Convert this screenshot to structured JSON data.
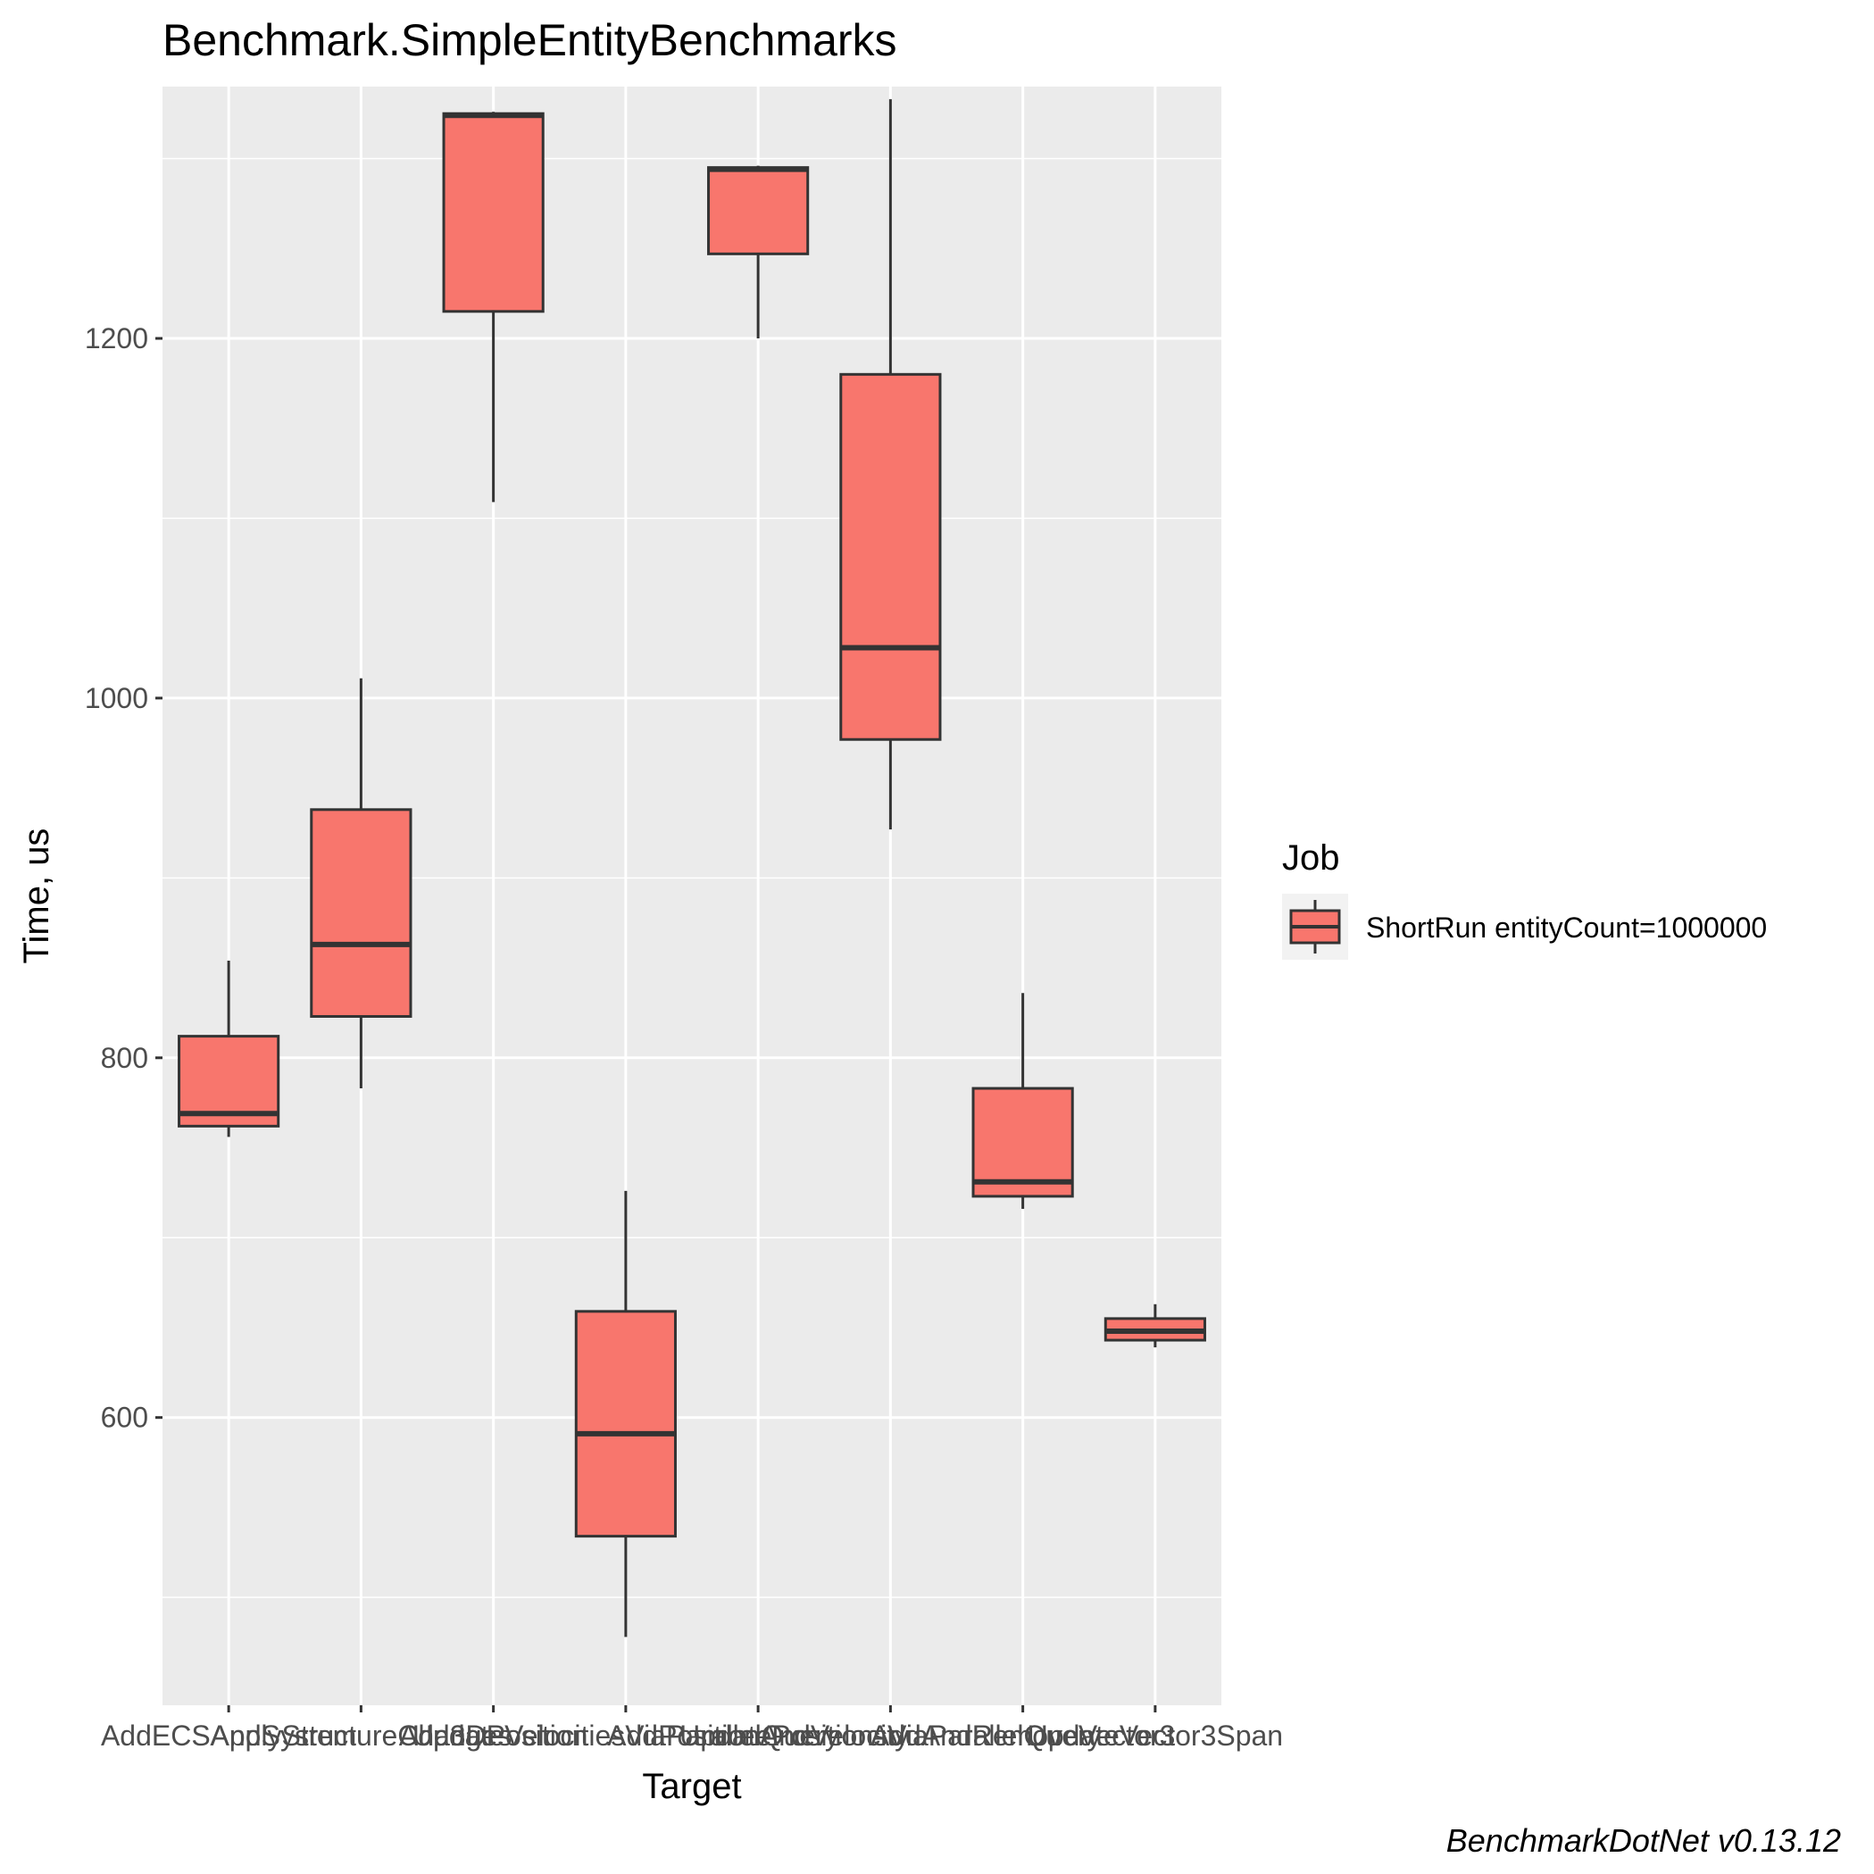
{
  "chart_data": {
    "type": "box",
    "title": "Benchmark.SimpleEntityBenchmarks",
    "xlabel": "Target",
    "ylabel": "Time, us",
    "categories": [
      "AddECSAndSystem",
      "ApplyStructureChanges",
      "Add3DPosition",
      "UpdateVelocitiesViaParallelQuery",
      "AddPositionAndVelocity",
      "UpdatePositionsViaParallelQuery",
      "AddAndRemoveVector3",
      "UpdateVector3Span"
    ],
    "yticks": [
      600,
      800,
      1000,
      1200
    ],
    "ylim": [
      440,
      1340
    ],
    "grid": true,
    "series": [
      {
        "name": "ShortRun entityCount=1000000",
        "color": "#F8766D",
        "boxes": [
          {
            "category": "AddECSAndSystem",
            "min": 756,
            "q1": 762,
            "median": 769,
            "q3": 812,
            "max": 854
          },
          {
            "category": "ApplyStructureChanges",
            "min": 783,
            "q1": 823,
            "median": 863,
            "q3": 938,
            "max": 1011
          },
          {
            "category": "Add3DPosition",
            "min": 1109,
            "q1": 1215,
            "median": 1324,
            "q3": 1325,
            "max": 1326
          },
          {
            "category": "UpdateVelocitiesViaParallelQuery",
            "min": 478,
            "q1": 534,
            "median": 591,
            "q3": 659,
            "max": 726
          },
          {
            "category": "AddPositionAndVelocity",
            "min": 1200,
            "q1": 1247,
            "median": 1294,
            "q3": 1295,
            "max": 1296
          },
          {
            "category": "UpdatePositionsViaParallelQuery",
            "min": 927,
            "q1": 977,
            "median": 1028,
            "q3": 1180,
            "max": 1333
          },
          {
            "category": "AddAndRemoveVector3",
            "min": 716,
            "q1": 723,
            "median": 731,
            "q3": 783,
            "max": 836
          },
          {
            "category": "UpdateVector3Span",
            "min": 639,
            "q1": 643,
            "median": 648,
            "q3": 655,
            "max": 663
          }
        ]
      }
    ],
    "legend": {
      "title": "Job",
      "position": "right",
      "entries": [
        "ShortRun entityCount=1000000"
      ]
    },
    "caption": "BenchmarkDotNet v0.13.12"
  },
  "colors": {
    "panel": "#EBEBEB",
    "grid": "#FFFFFF",
    "box_fill": "#F8766D",
    "box_line": "#333333",
    "tick": "#333333"
  }
}
